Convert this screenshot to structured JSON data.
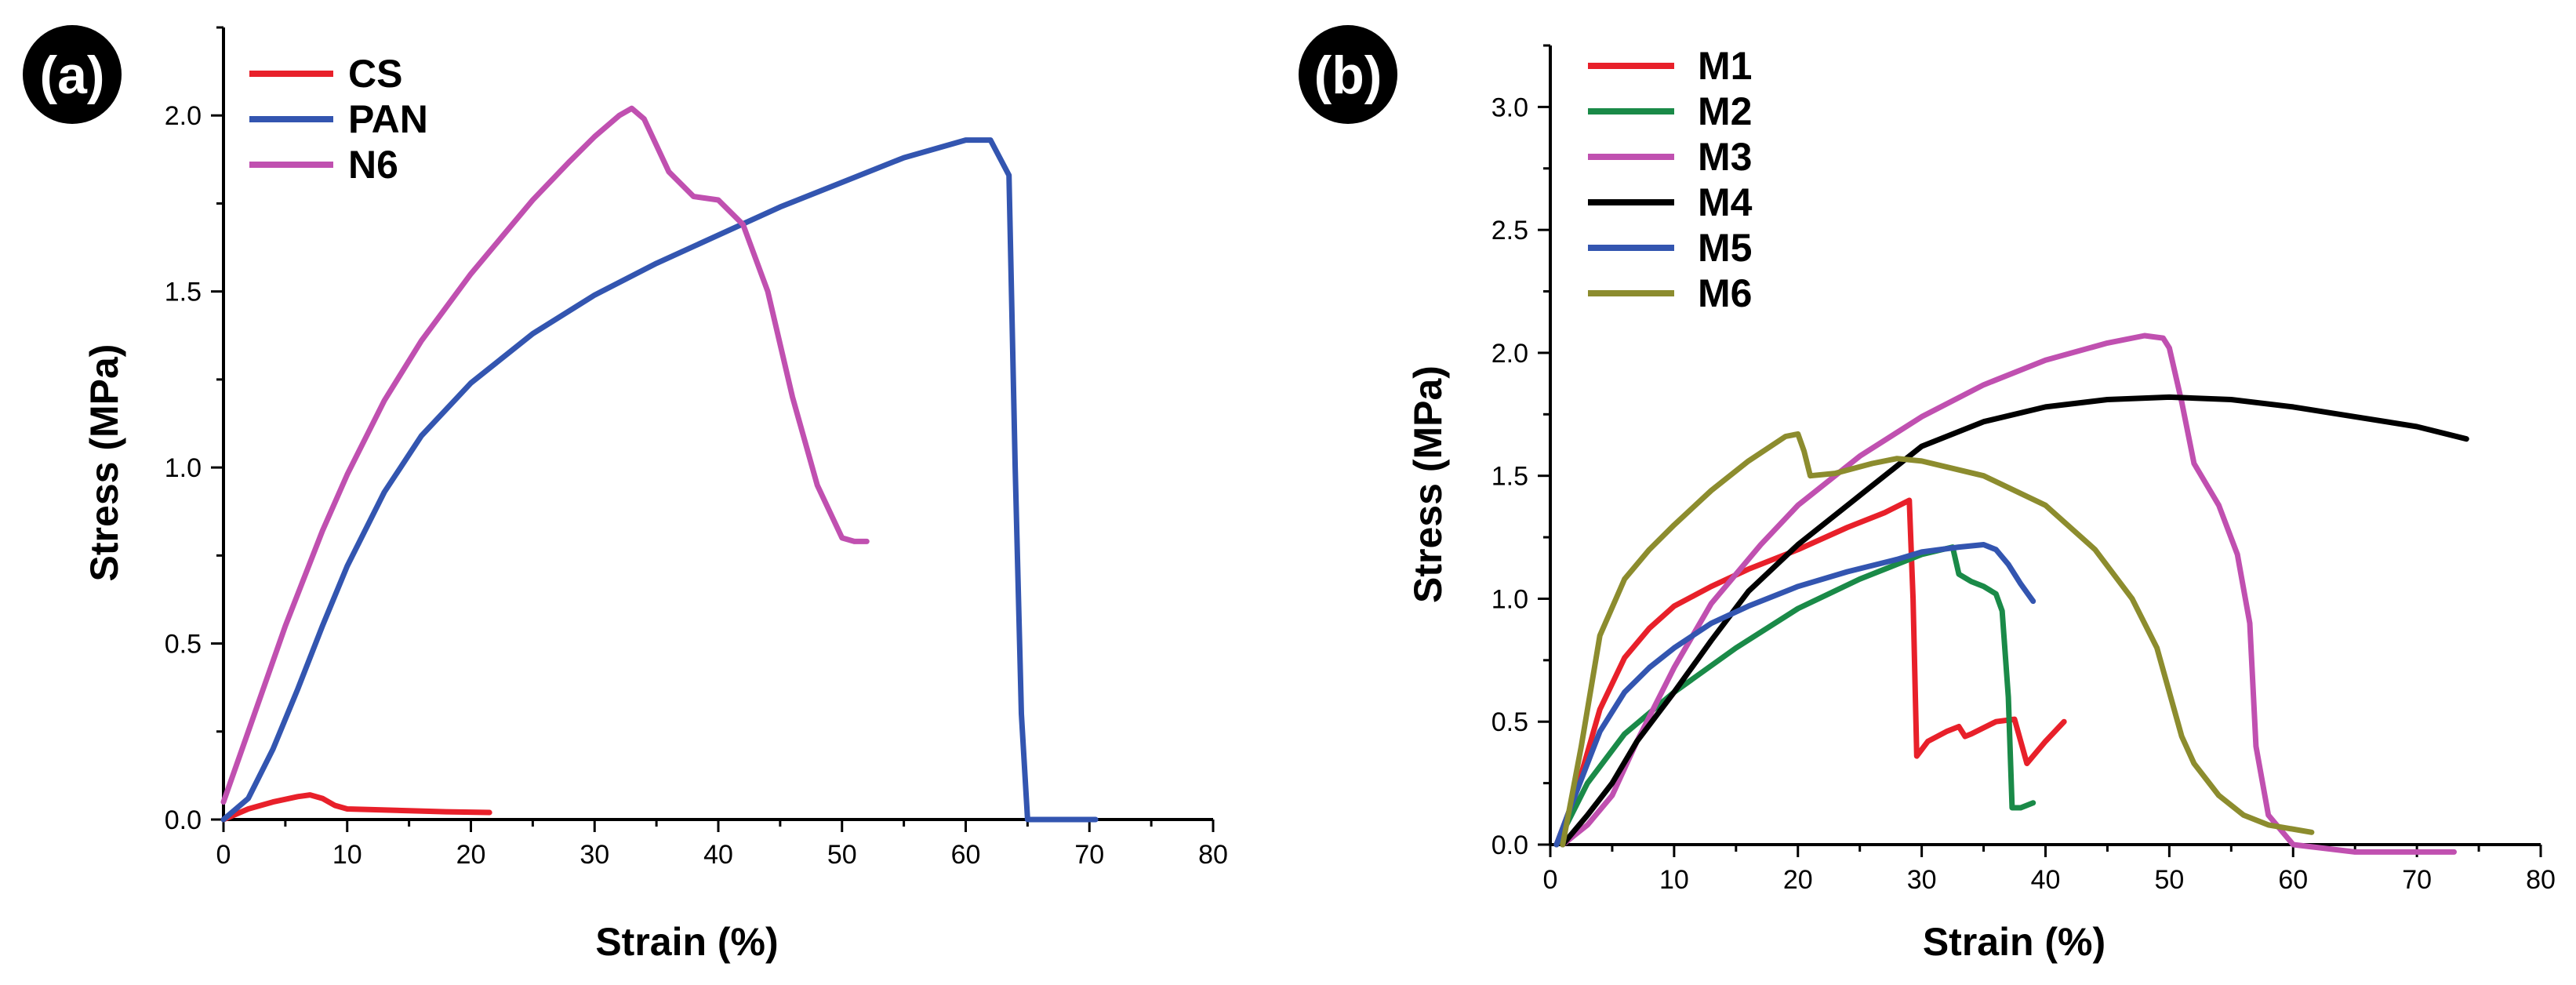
{
  "chart_data": [
    {
      "panel_label": "(a)",
      "type": "line",
      "xlabel": "Strain (%)",
      "ylabel": "Stress (MPa)",
      "xlim": [
        0,
        80
      ],
      "ylim": [
        0,
        2.25
      ],
      "xticks": [
        0,
        10,
        20,
        30,
        40,
        50,
        60,
        70,
        80
      ],
      "yticks": [
        0.0,
        0.5,
        1.0,
        1.5,
        2.0
      ],
      "ytick_labels": [
        "0.0",
        "0.5",
        "1.0",
        "1.5",
        "2.0"
      ],
      "legend_position": "top-left",
      "series": [
        {
          "name": "CS",
          "color": "#e8202a",
          "x": [
            0,
            2,
            4,
            6,
            7,
            8,
            9,
            10,
            12,
            15,
            18,
            21.5
          ],
          "y": [
            0,
            0.03,
            0.05,
            0.065,
            0.07,
            0.06,
            0.04,
            0.03,
            0.028,
            0.025,
            0.022,
            0.02
          ]
        },
        {
          "name": "PAN",
          "color": "#3355b0",
          "x": [
            0,
            2,
            4,
            6,
            8,
            10,
            13,
            16,
            20,
            25,
            30,
            35,
            40,
            45,
            50,
            55,
            58,
            60,
            62,
            63.5,
            64,
            64.5,
            65,
            70.5
          ],
          "y": [
            0,
            0.06,
            0.2,
            0.37,
            0.55,
            0.72,
            0.93,
            1.09,
            1.24,
            1.38,
            1.49,
            1.58,
            1.66,
            1.74,
            1.81,
            1.88,
            1.91,
            1.93,
            1.93,
            1.83,
            1.0,
            0.3,
            0.0,
            0.0
          ]
        },
        {
          "name": "N6",
          "color": "#c050b0",
          "x": [
            0,
            2,
            5,
            8,
            10,
            13,
            16,
            20,
            25,
            28,
            30,
            32,
            33,
            34,
            36,
            38,
            40,
            42,
            44,
            46,
            48,
            50,
            51,
            52
          ],
          "y": [
            0.05,
            0.25,
            0.55,
            0.82,
            0.98,
            1.19,
            1.36,
            1.55,
            1.76,
            1.87,
            1.94,
            2.0,
            2.02,
            1.99,
            1.84,
            1.77,
            1.76,
            1.69,
            1.5,
            1.2,
            0.95,
            0.8,
            0.79,
            0.79
          ]
        }
      ]
    },
    {
      "panel_label": "(b)",
      "type": "line",
      "xlabel": "Strain (%)",
      "ylabel": "Stress (MPa)",
      "xlim": [
        0,
        80
      ],
      "ylim": [
        0,
        3.25
      ],
      "xticks": [
        0,
        10,
        20,
        30,
        40,
        50,
        60,
        70,
        80
      ],
      "yticks": [
        0.0,
        0.5,
        1.0,
        1.5,
        2.0,
        2.5,
        3.0
      ],
      "ytick_labels": [
        "0.0",
        "0.5",
        "1.0",
        "1.5",
        "2.0",
        "2.5",
        "3.0"
      ],
      "legend_position": "top-left",
      "series": [
        {
          "name": "M1",
          "color": "#e8202a",
          "x": [
            0.5,
            2,
            4,
            6,
            8,
            10,
            13,
            16,
            20,
            24,
            27,
            29,
            29.3,
            29.6,
            30.5,
            32,
            33,
            33.5,
            34,
            36,
            37.5,
            38,
            38.5,
            40,
            41.5
          ],
          "y": [
            0,
            0.2,
            0.55,
            0.76,
            0.88,
            0.97,
            1.05,
            1.12,
            1.2,
            1.29,
            1.35,
            1.4,
            1.0,
            0.36,
            0.42,
            0.46,
            0.48,
            0.44,
            0.45,
            0.5,
            0.51,
            0.42,
            0.33,
            0.42,
            0.5
          ]
        },
        {
          "name": "M2",
          "color": "#1a8a48",
          "x": [
            0.5,
            3,
            6,
            10,
            15,
            20,
            25,
            30,
            32.5,
            33,
            34,
            35,
            36,
            36.5,
            37,
            37.3,
            38,
            39
          ],
          "y": [
            0,
            0.25,
            0.45,
            0.62,
            0.8,
            0.96,
            1.08,
            1.18,
            1.21,
            1.1,
            1.07,
            1.05,
            1.02,
            0.95,
            0.6,
            0.15,
            0.15,
            0.17
          ]
        },
        {
          "name": "M3",
          "color": "#c050b0",
          "x": [
            1,
            3,
            5,
            7,
            10,
            13,
            17,
            20,
            25,
            30,
            35,
            40,
            45,
            48,
            49.5,
            50,
            51,
            52,
            54,
            55.5,
            56.5,
            57,
            58,
            60,
            65,
            73
          ],
          "y": [
            0,
            0.08,
            0.2,
            0.42,
            0.72,
            0.98,
            1.22,
            1.38,
            1.58,
            1.74,
            1.87,
            1.97,
            2.04,
            2.07,
            2.06,
            2.02,
            1.8,
            1.55,
            1.38,
            1.18,
            0.9,
            0.4,
            0.12,
            0.0,
            -0.03,
            -0.03
          ]
        },
        {
          "name": "M4",
          "color": "#000000",
          "x": [
            1,
            3,
            5,
            7,
            10,
            13,
            16,
            20,
            25,
            30,
            35,
            40,
            45,
            50,
            55,
            60,
            65,
            70,
            74
          ],
          "y": [
            0,
            0.12,
            0.25,
            0.42,
            0.62,
            0.83,
            1.03,
            1.22,
            1.42,
            1.62,
            1.72,
            1.78,
            1.81,
            1.82,
            1.81,
            1.78,
            1.74,
            1.7,
            1.65
          ]
        },
        {
          "name": "M5",
          "color": "#3355b0",
          "x": [
            0.5,
            2,
            4,
            6,
            8,
            10,
            13,
            16,
            20,
            24,
            28,
            30,
            33,
            35,
            36,
            37,
            38,
            39
          ],
          "y": [
            0,
            0.2,
            0.46,
            0.62,
            0.72,
            0.8,
            0.9,
            0.97,
            1.05,
            1.11,
            1.16,
            1.19,
            1.21,
            1.22,
            1.2,
            1.14,
            1.06,
            0.99
          ]
        },
        {
          "name": "M6",
          "color": "#8c8c2e",
          "x": [
            1,
            2.5,
            4,
            6,
            8,
            10,
            13,
            16,
            19,
            20,
            20.5,
            21,
            23,
            26,
            28,
            30,
            35,
            40,
            44,
            47,
            49,
            50,
            51,
            52,
            54,
            56,
            58,
            61.5
          ],
          "y": [
            0,
            0.4,
            0.85,
            1.08,
            1.2,
            1.3,
            1.44,
            1.56,
            1.66,
            1.67,
            1.6,
            1.5,
            1.51,
            1.55,
            1.57,
            1.56,
            1.5,
            1.38,
            1.2,
            1.0,
            0.8,
            0.62,
            0.44,
            0.33,
            0.2,
            0.12,
            0.08,
            0.05
          ]
        }
      ]
    }
  ]
}
